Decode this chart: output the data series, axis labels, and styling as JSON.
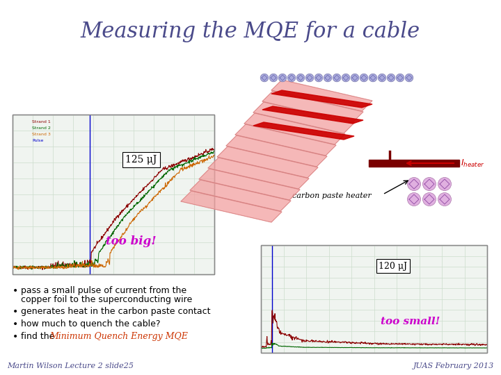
{
  "title": "Measuring the MQE for a cable",
  "title_color": "#4a4a8a",
  "title_fontsize": 22,
  "title_style": "italic",
  "title_family": "serif",
  "bg_color": "#ffffff",
  "footer_left": "Martin Wilson Lecture 2 slide25",
  "footer_right": "JUAS February 2013",
  "footer_color": "#4a4a8a",
  "footer_fontsize": 8,
  "label_125": "125 μJ",
  "label_120": "120 μJ",
  "label_too_big": "too big!",
  "label_too_small": "too small!",
  "label_too_color": "#cc00cc",
  "label_carbon": "carbon paste heater",
  "bullet4_color": "#cc3300",
  "text_color": "#000000",
  "bullet_fontsize": 9
}
